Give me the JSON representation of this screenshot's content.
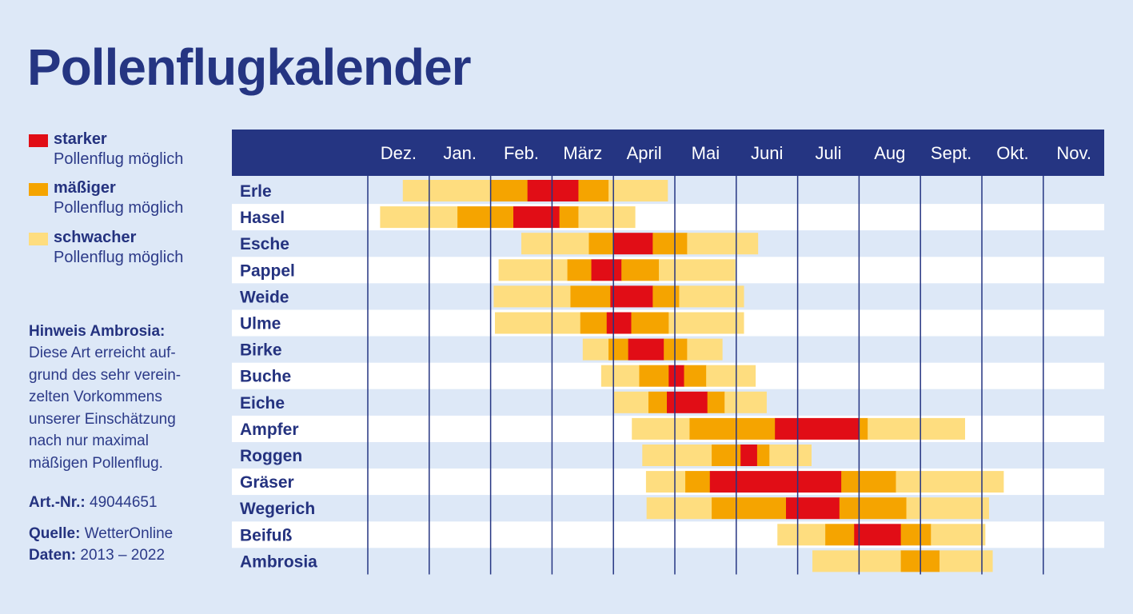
{
  "title": "Pollenflugkalender",
  "colors": {
    "background": "#dde8f7",
    "header": "#253582",
    "text": "#24327f",
    "strong": "#e10d16",
    "moderate": "#f5a400",
    "weak": "#fedd7f",
    "row_light": "#ffffff",
    "row_dark": "#dde8f7"
  },
  "legend": [
    {
      "key": "strong",
      "label": "starker",
      "sub": "Pollenflug möglich"
    },
    {
      "key": "moderate",
      "label": "mäßiger",
      "sub": "Pollenflug möglich"
    },
    {
      "key": "weak",
      "label": "schwacher",
      "sub": "Pollenflug möglich"
    }
  ],
  "note": {
    "heading": "Hinweis Ambrosia:",
    "text": "Diese Art erreicht auf-\ngrund des sehr verein-\nzelten Vorkommens\nunserer Einschätzung\nnach nur maximal\nmäßigen Pollenflug."
  },
  "article": {
    "label": "Art.-Nr.:",
    "value": "49044651"
  },
  "source": {
    "label": "Quelle:",
    "value": "WetterOnline"
  },
  "data_range": {
    "label": "Daten:",
    "value": "2013 – 2022"
  },
  "chart_data": {
    "type": "gantt",
    "x_unit": "month (0 = start of Dez., 12 = end of Nov.)",
    "months": [
      "Dez.",
      "Jan.",
      "Feb.",
      "März",
      "April",
      "Mai",
      "Juni",
      "Juli",
      "Aug",
      "Sept.",
      "Okt.",
      "Nov."
    ],
    "plants": [
      {
        "name": "Erle",
        "segments": [
          {
            "level": "weak",
            "start": 0.57,
            "end": 2.0
          },
          {
            "level": "moderate",
            "start": 2.0,
            "end": 2.6
          },
          {
            "level": "strong",
            "start": 2.6,
            "end": 3.43
          },
          {
            "level": "moderate",
            "start": 3.43,
            "end": 3.92
          },
          {
            "level": "weak",
            "start": 3.92,
            "end": 4.88
          }
        ]
      },
      {
        "name": "Hasel",
        "segments": [
          {
            "level": "weak",
            "start": 0.2,
            "end": 1.46
          },
          {
            "level": "moderate",
            "start": 1.46,
            "end": 2.37
          },
          {
            "level": "strong",
            "start": 2.37,
            "end": 3.12
          },
          {
            "level": "moderate",
            "start": 3.12,
            "end": 3.43
          },
          {
            "level": "weak",
            "start": 3.43,
            "end": 4.35
          }
        ]
      },
      {
        "name": "Esche",
        "segments": [
          {
            "level": "weak",
            "start": 2.5,
            "end": 3.6
          },
          {
            "level": "moderate",
            "start": 3.6,
            "end": 4.0
          },
          {
            "level": "strong",
            "start": 4.0,
            "end": 4.64
          },
          {
            "level": "moderate",
            "start": 4.64,
            "end": 5.2
          },
          {
            "level": "weak",
            "start": 5.2,
            "end": 6.35
          }
        ]
      },
      {
        "name": "Pappel",
        "segments": [
          {
            "level": "weak",
            "start": 2.13,
            "end": 3.25
          },
          {
            "level": "moderate",
            "start": 3.25,
            "end": 3.64
          },
          {
            "level": "strong",
            "start": 3.64,
            "end": 4.13
          },
          {
            "level": "moderate",
            "start": 4.13,
            "end": 4.74
          },
          {
            "level": "weak",
            "start": 4.74,
            "end": 5.98
          }
        ]
      },
      {
        "name": "Weide",
        "segments": [
          {
            "level": "weak",
            "start": 2.05,
            "end": 3.3
          },
          {
            "level": "moderate",
            "start": 3.3,
            "end": 3.95
          },
          {
            "level": "strong",
            "start": 3.95,
            "end": 4.64
          },
          {
            "level": "moderate",
            "start": 4.64,
            "end": 5.07
          },
          {
            "level": "weak",
            "start": 5.07,
            "end": 6.12
          }
        ]
      },
      {
        "name": "Ulme",
        "segments": [
          {
            "level": "weak",
            "start": 2.07,
            "end": 3.46
          },
          {
            "level": "moderate",
            "start": 3.46,
            "end": 3.89
          },
          {
            "level": "strong",
            "start": 3.89,
            "end": 4.29
          },
          {
            "level": "moderate",
            "start": 4.29,
            "end": 4.9
          },
          {
            "level": "weak",
            "start": 4.9,
            "end": 6.12
          }
        ]
      },
      {
        "name": "Birke",
        "segments": [
          {
            "level": "weak",
            "start": 3.5,
            "end": 3.92
          },
          {
            "level": "moderate",
            "start": 3.92,
            "end": 4.24
          },
          {
            "level": "strong",
            "start": 4.24,
            "end": 4.82
          },
          {
            "level": "moderate",
            "start": 4.82,
            "end": 5.2
          },
          {
            "level": "weak",
            "start": 5.2,
            "end": 5.77
          }
        ]
      },
      {
        "name": "Buche",
        "segments": [
          {
            "level": "weak",
            "start": 3.8,
            "end": 4.42
          },
          {
            "level": "moderate",
            "start": 4.42,
            "end": 4.9
          },
          {
            "level": "strong",
            "start": 4.9,
            "end": 5.15
          },
          {
            "level": "moderate",
            "start": 5.15,
            "end": 5.51
          },
          {
            "level": "weak",
            "start": 5.51,
            "end": 6.31
          }
        ]
      },
      {
        "name": "Eiche",
        "segments": [
          {
            "level": "weak",
            "start": 4.01,
            "end": 4.57
          },
          {
            "level": "moderate",
            "start": 4.57,
            "end": 4.87
          },
          {
            "level": "strong",
            "start": 4.87,
            "end": 5.53
          },
          {
            "level": "moderate",
            "start": 5.53,
            "end": 5.81
          },
          {
            "level": "weak",
            "start": 5.81,
            "end": 6.49
          }
        ]
      },
      {
        "name": "Ampfer",
        "segments": [
          {
            "level": "weak",
            "start": 4.3,
            "end": 5.24
          },
          {
            "level": "moderate",
            "start": 5.24,
            "end": 6.63
          },
          {
            "level": "strong",
            "start": 6.63,
            "end": 8.0
          },
          {
            "level": "moderate",
            "start": 8.0,
            "end": 8.14
          },
          {
            "level": "weak",
            "start": 8.14,
            "end": 9.72
          }
        ]
      },
      {
        "name": "Roggen",
        "segments": [
          {
            "level": "weak",
            "start": 4.47,
            "end": 5.6
          },
          {
            "level": "moderate",
            "start": 5.6,
            "end": 6.07
          },
          {
            "level": "strong",
            "start": 6.07,
            "end": 6.34
          },
          {
            "level": "moderate",
            "start": 6.34,
            "end": 6.54
          },
          {
            "level": "weak",
            "start": 6.54,
            "end": 7.22
          }
        ]
      },
      {
        "name": "Gräser",
        "segments": [
          {
            "level": "weak",
            "start": 4.53,
            "end": 5.17
          },
          {
            "level": "moderate",
            "start": 5.17,
            "end": 5.57
          },
          {
            "level": "strong",
            "start": 5.57,
            "end": 7.71
          },
          {
            "level": "moderate",
            "start": 7.71,
            "end": 8.6
          },
          {
            "level": "weak",
            "start": 8.6,
            "end": 10.35
          }
        ]
      },
      {
        "name": "Wegerich",
        "segments": [
          {
            "level": "weak",
            "start": 4.54,
            "end": 5.6
          },
          {
            "level": "moderate",
            "start": 5.6,
            "end": 6.81
          },
          {
            "level": "strong",
            "start": 6.81,
            "end": 7.68
          },
          {
            "level": "moderate",
            "start": 7.68,
            "end": 8.77
          },
          {
            "level": "weak",
            "start": 8.77,
            "end": 10.11
          }
        ]
      },
      {
        "name": "Beifuß",
        "segments": [
          {
            "level": "weak",
            "start": 6.67,
            "end": 7.45
          },
          {
            "level": "moderate",
            "start": 7.45,
            "end": 7.92
          },
          {
            "level": "strong",
            "start": 7.92,
            "end": 8.68
          },
          {
            "level": "moderate",
            "start": 8.68,
            "end": 9.17
          },
          {
            "level": "weak",
            "start": 9.17,
            "end": 10.05
          }
        ]
      },
      {
        "name": "Ambrosia",
        "segments": [
          {
            "level": "weak",
            "start": 7.24,
            "end": 8.68
          },
          {
            "level": "moderate",
            "start": 8.68,
            "end": 9.31
          },
          {
            "level": "weak",
            "start": 9.31,
            "end": 10.17
          }
        ]
      }
    ]
  }
}
